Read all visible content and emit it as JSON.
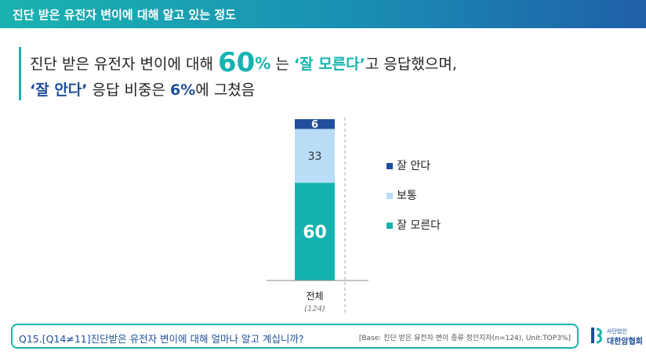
{
  "header": {
    "title": "진단 받은 유전자 변이에 대해 알고 있는 정도"
  },
  "headline": {
    "l1_a": "진단 받은 유전자 변이에 대해 ",
    "l1_big": "60",
    "l1_pct": "%",
    "l1_b": " 는 ",
    "l1_quote": "‘잘 모른다’",
    "l1_c": "고 응답했으며,",
    "l2_quote": "‘잘 안다’",
    "l2_a": " 응답 비중은 ",
    "l2_pct": "6%",
    "l2_b": "에 그쳤음"
  },
  "chart_data": {
    "type": "bar",
    "stacked": true,
    "categories": [
      "전체"
    ],
    "category_sublabels": [
      "(124)"
    ],
    "ylim": [
      0,
      100
    ],
    "series": [
      {
        "name": "잘 모른다",
        "values": [
          60
        ],
        "color": "#15b3b0",
        "label_color": "#ffffff"
      },
      {
        "name": "보통",
        "values": [
          33
        ],
        "color": "#b9dcf7",
        "label_color": "#333333"
      },
      {
        "name": "잘 안다",
        "values": [
          6
        ],
        "color": "#1f4e9a",
        "label_color": "#ffffff"
      }
    ],
    "legend": {
      "placement": "right",
      "entries": [
        "잘 안다",
        "보통",
        "잘 모른다"
      ]
    }
  },
  "footer": {
    "question": "Q15.[Q14≠11]진단받은 유전자 변이에 대해 얼마나 알고 계십니까?",
    "base": "[Base: 진단 받은 유전자 변이 종류 정인지자(n=124), Unit:TOP3%]"
  },
  "logo": {
    "sub": "사단법인",
    "name": "대한암협회"
  },
  "colors": {
    "teal": "#15b3b0",
    "navy": "#1f4e9a",
    "light_blue": "#b9dcf7"
  }
}
